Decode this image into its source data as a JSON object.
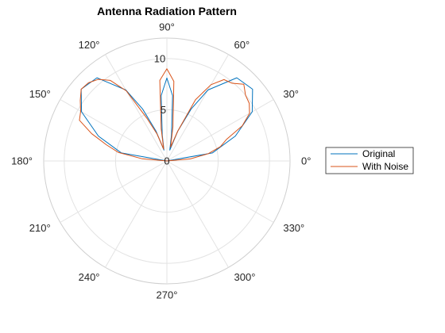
{
  "chart_data": {
    "type": "line",
    "coordinate_system": "polar",
    "title": "Antenna Radiation Pattern",
    "theta_unit": "degrees",
    "theta_ticks": [
      0,
      30,
      60,
      90,
      120,
      150,
      180,
      210,
      240,
      270,
      300,
      330
    ],
    "theta_tick_labels": [
      "0°",
      "30°",
      "60°",
      "90°",
      "120°",
      "150°",
      "180°",
      "210°",
      "240°",
      "270°",
      "300°",
      "330°"
    ],
    "r_ticks": [
      5,
      10
    ],
    "r_tick_labels": [
      "5",
      "10"
    ],
    "r_lim": [
      0,
      12
    ],
    "grid": true,
    "legend_position": "right",
    "series": [
      {
        "name": "Original",
        "color": "#0072BD",
        "theta": [
          0,
          10,
          20,
          30,
          40,
          50,
          60,
          65,
          70,
          75,
          80,
          85,
          90,
          95,
          100,
          105,
          110,
          115,
          120,
          130,
          140,
          150,
          160,
          170,
          180
        ],
        "r": [
          0,
          4.5,
          7.1,
          9.6,
          10.9,
          10.6,
          8.0,
          5.6,
          3.1,
          1.1,
          2.6,
          6.4,
          8.1,
          6.4,
          2.6,
          1.1,
          3.1,
          5.6,
          8.0,
          10.6,
          10.9,
          9.6,
          7.1,
          4.5,
          0
        ]
      },
      {
        "name": "With Noise",
        "color": "#D95319",
        "theta": [
          0,
          5,
          10,
          15,
          20,
          25,
          30,
          35,
          40,
          45,
          50,
          55,
          60,
          65,
          70,
          75,
          80,
          85,
          90,
          95,
          100,
          105,
          110,
          115,
          120,
          125,
          130,
          135,
          140,
          145,
          150,
          155,
          160,
          165,
          170,
          175,
          180
        ],
        "r": [
          0,
          2.3,
          4.1,
          5.4,
          6.2,
          8.1,
          9.3,
          9.8,
          10.0,
          10.6,
          9.9,
          9.7,
          8.6,
          6.6,
          3.1,
          1.4,
          3.4,
          7.8,
          9.0,
          7.9,
          3.2,
          1.2,
          2.8,
          4.6,
          7.9,
          9.6,
          10.4,
          10.8,
          10.9,
          10.3,
          9.7,
          9.4,
          7.8,
          6.1,
          4.8,
          2.4,
          0
        ]
      }
    ]
  }
}
